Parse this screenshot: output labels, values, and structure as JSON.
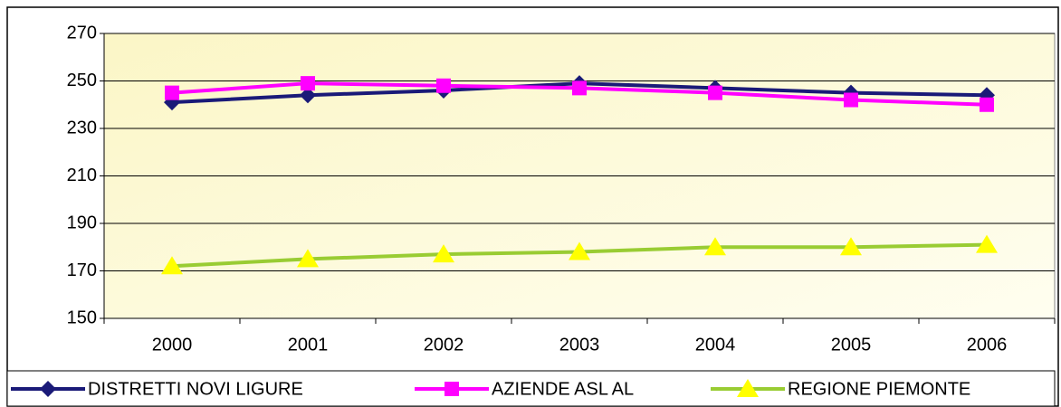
{
  "chart_data": {
    "type": "line",
    "categories": [
      "2000",
      "2001",
      "2002",
      "2003",
      "2004",
      "2005",
      "2006"
    ],
    "series": [
      {
        "name": "DISTRETTI NOVI LIGURE",
        "color": "#1a1a78",
        "marker": "diamond",
        "values": [
          241,
          244,
          246,
          249,
          247,
          245,
          244
        ]
      },
      {
        "name": "AZIENDE ASL AL",
        "color": "#ff00ff",
        "marker": "square",
        "values": [
          245,
          249,
          248,
          247,
          245,
          242,
          240
        ]
      },
      {
        "name": "REGIONE PIEMONTE",
        "color": "#99cc33",
        "marker_color": "#ffff00",
        "marker": "triangle",
        "values": [
          172,
          175,
          177,
          178,
          180,
          180,
          181
        ]
      }
    ],
    "ylim": [
      150,
      270
    ],
    "yticks": [
      150,
      170,
      190,
      210,
      230,
      250,
      270
    ],
    "grid": true,
    "legend": "bottom"
  }
}
